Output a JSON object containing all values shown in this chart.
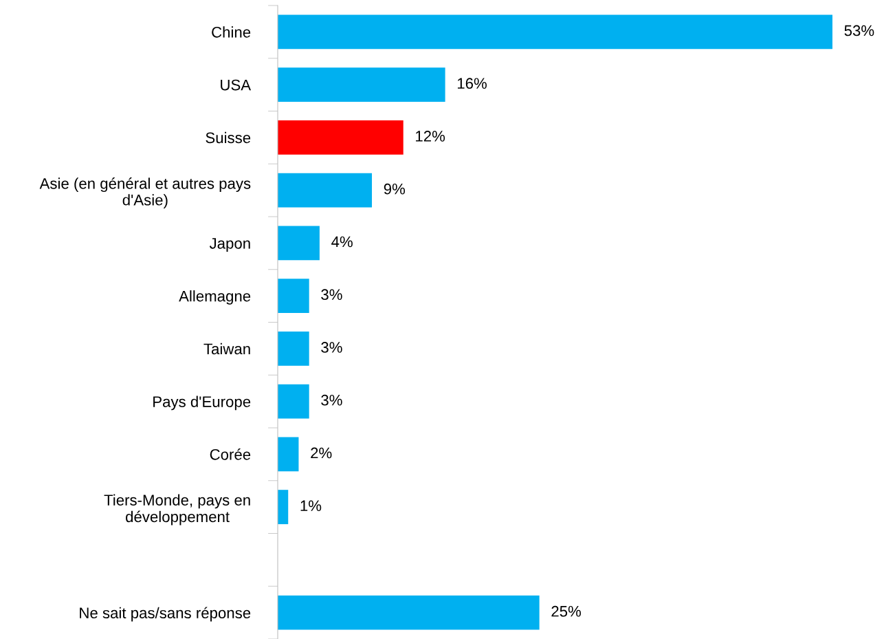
{
  "chart_data": {
    "type": "bar",
    "orientation": "horizontal",
    "categories": [
      "Chine",
      "USA",
      "Suisse",
      "Asie (en général et autres pays\nd'Asie)",
      "Japon",
      "Allemagne",
      "Taiwan",
      "Pays d'Europe",
      "Corée",
      "Tiers-Monde, pays en\ndéveloppement",
      null,
      "Ne sait pas/sans réponse"
    ],
    "values": [
      53,
      16,
      12,
      9,
      4,
      3,
      3,
      3,
      2,
      1,
      null,
      25
    ],
    "value_labels": [
      "53%",
      "16%",
      "12%",
      "9%",
      "4%",
      "3%",
      "3%",
      "3%",
      "2%",
      "1%",
      null,
      "25%"
    ],
    "colors": [
      "#00b0f0",
      "#00b0f0",
      "#ff0000",
      "#00b0f0",
      "#00b0f0",
      "#00b0f0",
      "#00b0f0",
      "#00b0f0",
      "#00b0f0",
      "#00b0f0",
      "#00b0f0",
      "#00b0f0"
    ],
    "grid": false,
    "legend": false
  }
}
